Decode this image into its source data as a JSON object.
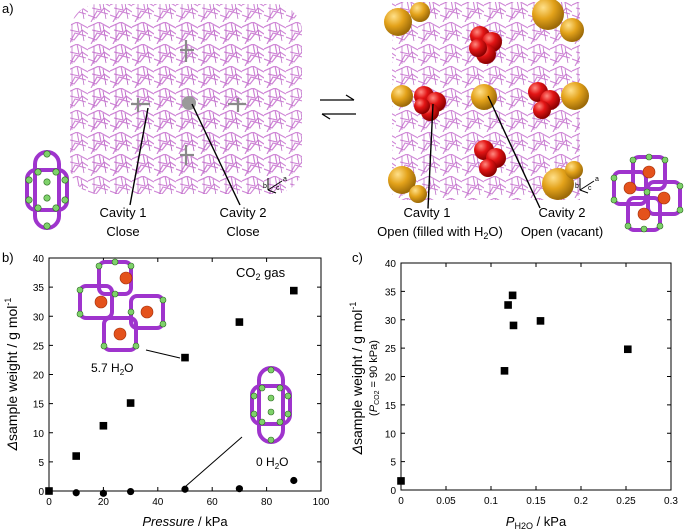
{
  "panel_a": {
    "label": "a)",
    "left_structure": {
      "cavity1": {
        "line1": "Cavity 1",
        "line2": "Close"
      },
      "cavity2": {
        "line1": "Cavity 2",
        "line2": "Close"
      }
    },
    "right_structure": {
      "cavity1": {
        "line1": "Cavity 1",
        "line2_prefix": "Open (filled with H",
        "line2_sub": "2",
        "line2_suffix": "O)"
      },
      "cavity2": {
        "line1": "Cavity 2",
        "line2": "Open (vacant)"
      }
    },
    "axes_labels": {
      "a": "a",
      "b": "b",
      "c": "c"
    },
    "colors": {
      "framework": "#cf86d6",
      "water": "#e01010",
      "vacant": "#e3a21a",
      "linker": "#9f34cd",
      "node": "#7ed26a",
      "guest": "#e4521c"
    }
  },
  "panel_b": {
    "label": "b)",
    "gas_label_prefix": "CO",
    "gas_label_sub": "2",
    "gas_label_suffix": " gas",
    "annotation_57": {
      "prefix": "5.7 H",
      "sub": "2",
      "suffix": "O"
    },
    "annotation_0": {
      "prefix": "0 H",
      "sub": "2",
      "suffix": "O"
    },
    "ylabel_symbol": "Δ",
    "ylabel_text": "sample weight / g mol",
    "ylabel_sup": "-1",
    "xlabel_italic": "Pressure",
    "xlabel_rest": " / kPa",
    "chart_data": {
      "type": "scatter",
      "xlabel": "Pressure / kPa",
      "ylabel": "Δsample weight / g mol-1",
      "xlim": [
        0,
        100
      ],
      "ylim": [
        0,
        40
      ],
      "xticks": [
        0,
        20,
        40,
        60,
        80,
        100
      ],
      "yticks": [
        0,
        5,
        10,
        15,
        20,
        25,
        30,
        35,
        40
      ],
      "series": [
        {
          "name": "5.7 H2O",
          "marker": "square",
          "x": [
            0,
            10,
            20,
            30,
            50,
            70,
            90
          ],
          "y": [
            0,
            6,
            11.2,
            15.1,
            22.9,
            29,
            34.4
          ]
        },
        {
          "name": "0 H2O",
          "marker": "circle",
          "x": [
            0,
            10,
            20,
            30,
            50,
            70,
            90
          ],
          "y": [
            0,
            -0.3,
            -0.4,
            -0.1,
            0.3,
            0.4,
            1.8
          ]
        }
      ]
    }
  },
  "panel_c": {
    "label": "c)",
    "ylabel_symbol": "Δ",
    "ylabel_text": "sample weight / g mol",
    "ylabel_sup": "-1",
    "ylabel2_open": "(",
    "ylabel2_P": "P",
    "ylabel2_sub": "CO2",
    "ylabel2_rest": " = 90 kPa)",
    "xlabel_P": "P",
    "xlabel_sub": "H2O",
    "xlabel_rest": " / kPa",
    "chart_data": {
      "type": "scatter",
      "xlabel": "PH2O / kPa",
      "ylabel": "Δsample weight / g mol-1 (PCO2 = 90 kPa)",
      "xlim": [
        0,
        0.3
      ],
      "ylim": [
        0,
        40
      ],
      "xticks": [
        "0",
        "0.05",
        "0.1",
        "0.15",
        "0.2",
        "0.25",
        "0.3"
      ],
      "yticks": [
        0,
        5,
        10,
        15,
        20,
        25,
        30,
        35,
        40
      ],
      "series": [
        {
          "marker": "square",
          "x": [
            0,
            0.115,
            0.119,
            0.124,
            0.125,
            0.155,
            0.252
          ],
          "y": [
            1.6,
            21,
            32.6,
            34.3,
            29,
            29.8,
            24.8
          ]
        }
      ]
    }
  }
}
